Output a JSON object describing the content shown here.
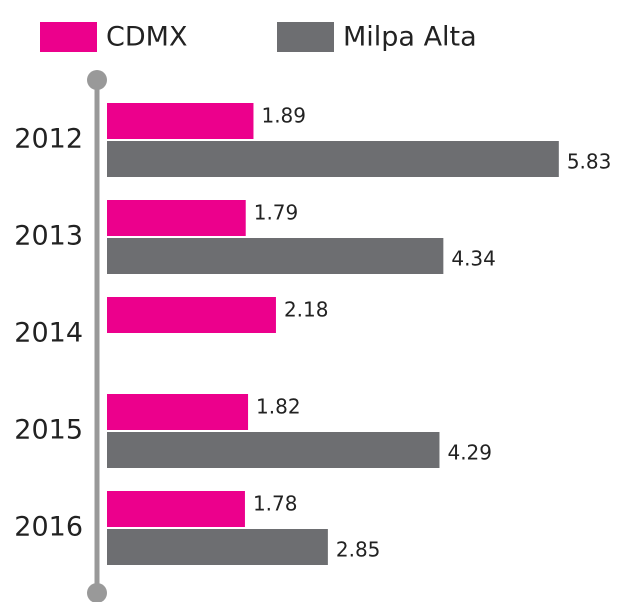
{
  "chart_data": {
    "type": "barh",
    "categories": [
      "2012",
      "2013",
      "2014",
      "2015",
      "2016"
    ],
    "series": [
      {
        "name": "CDMX",
        "color": "#ec008c",
        "values": [
          1.89,
          1.79,
          2.18,
          1.82,
          1.78
        ]
      },
      {
        "name": "Milpa Alta",
        "color": "#6d6e71",
        "values": [
          5.83,
          4.34,
          null,
          4.29,
          2.85
        ]
      }
    ],
    "xlim": [
      0,
      6
    ]
  }
}
